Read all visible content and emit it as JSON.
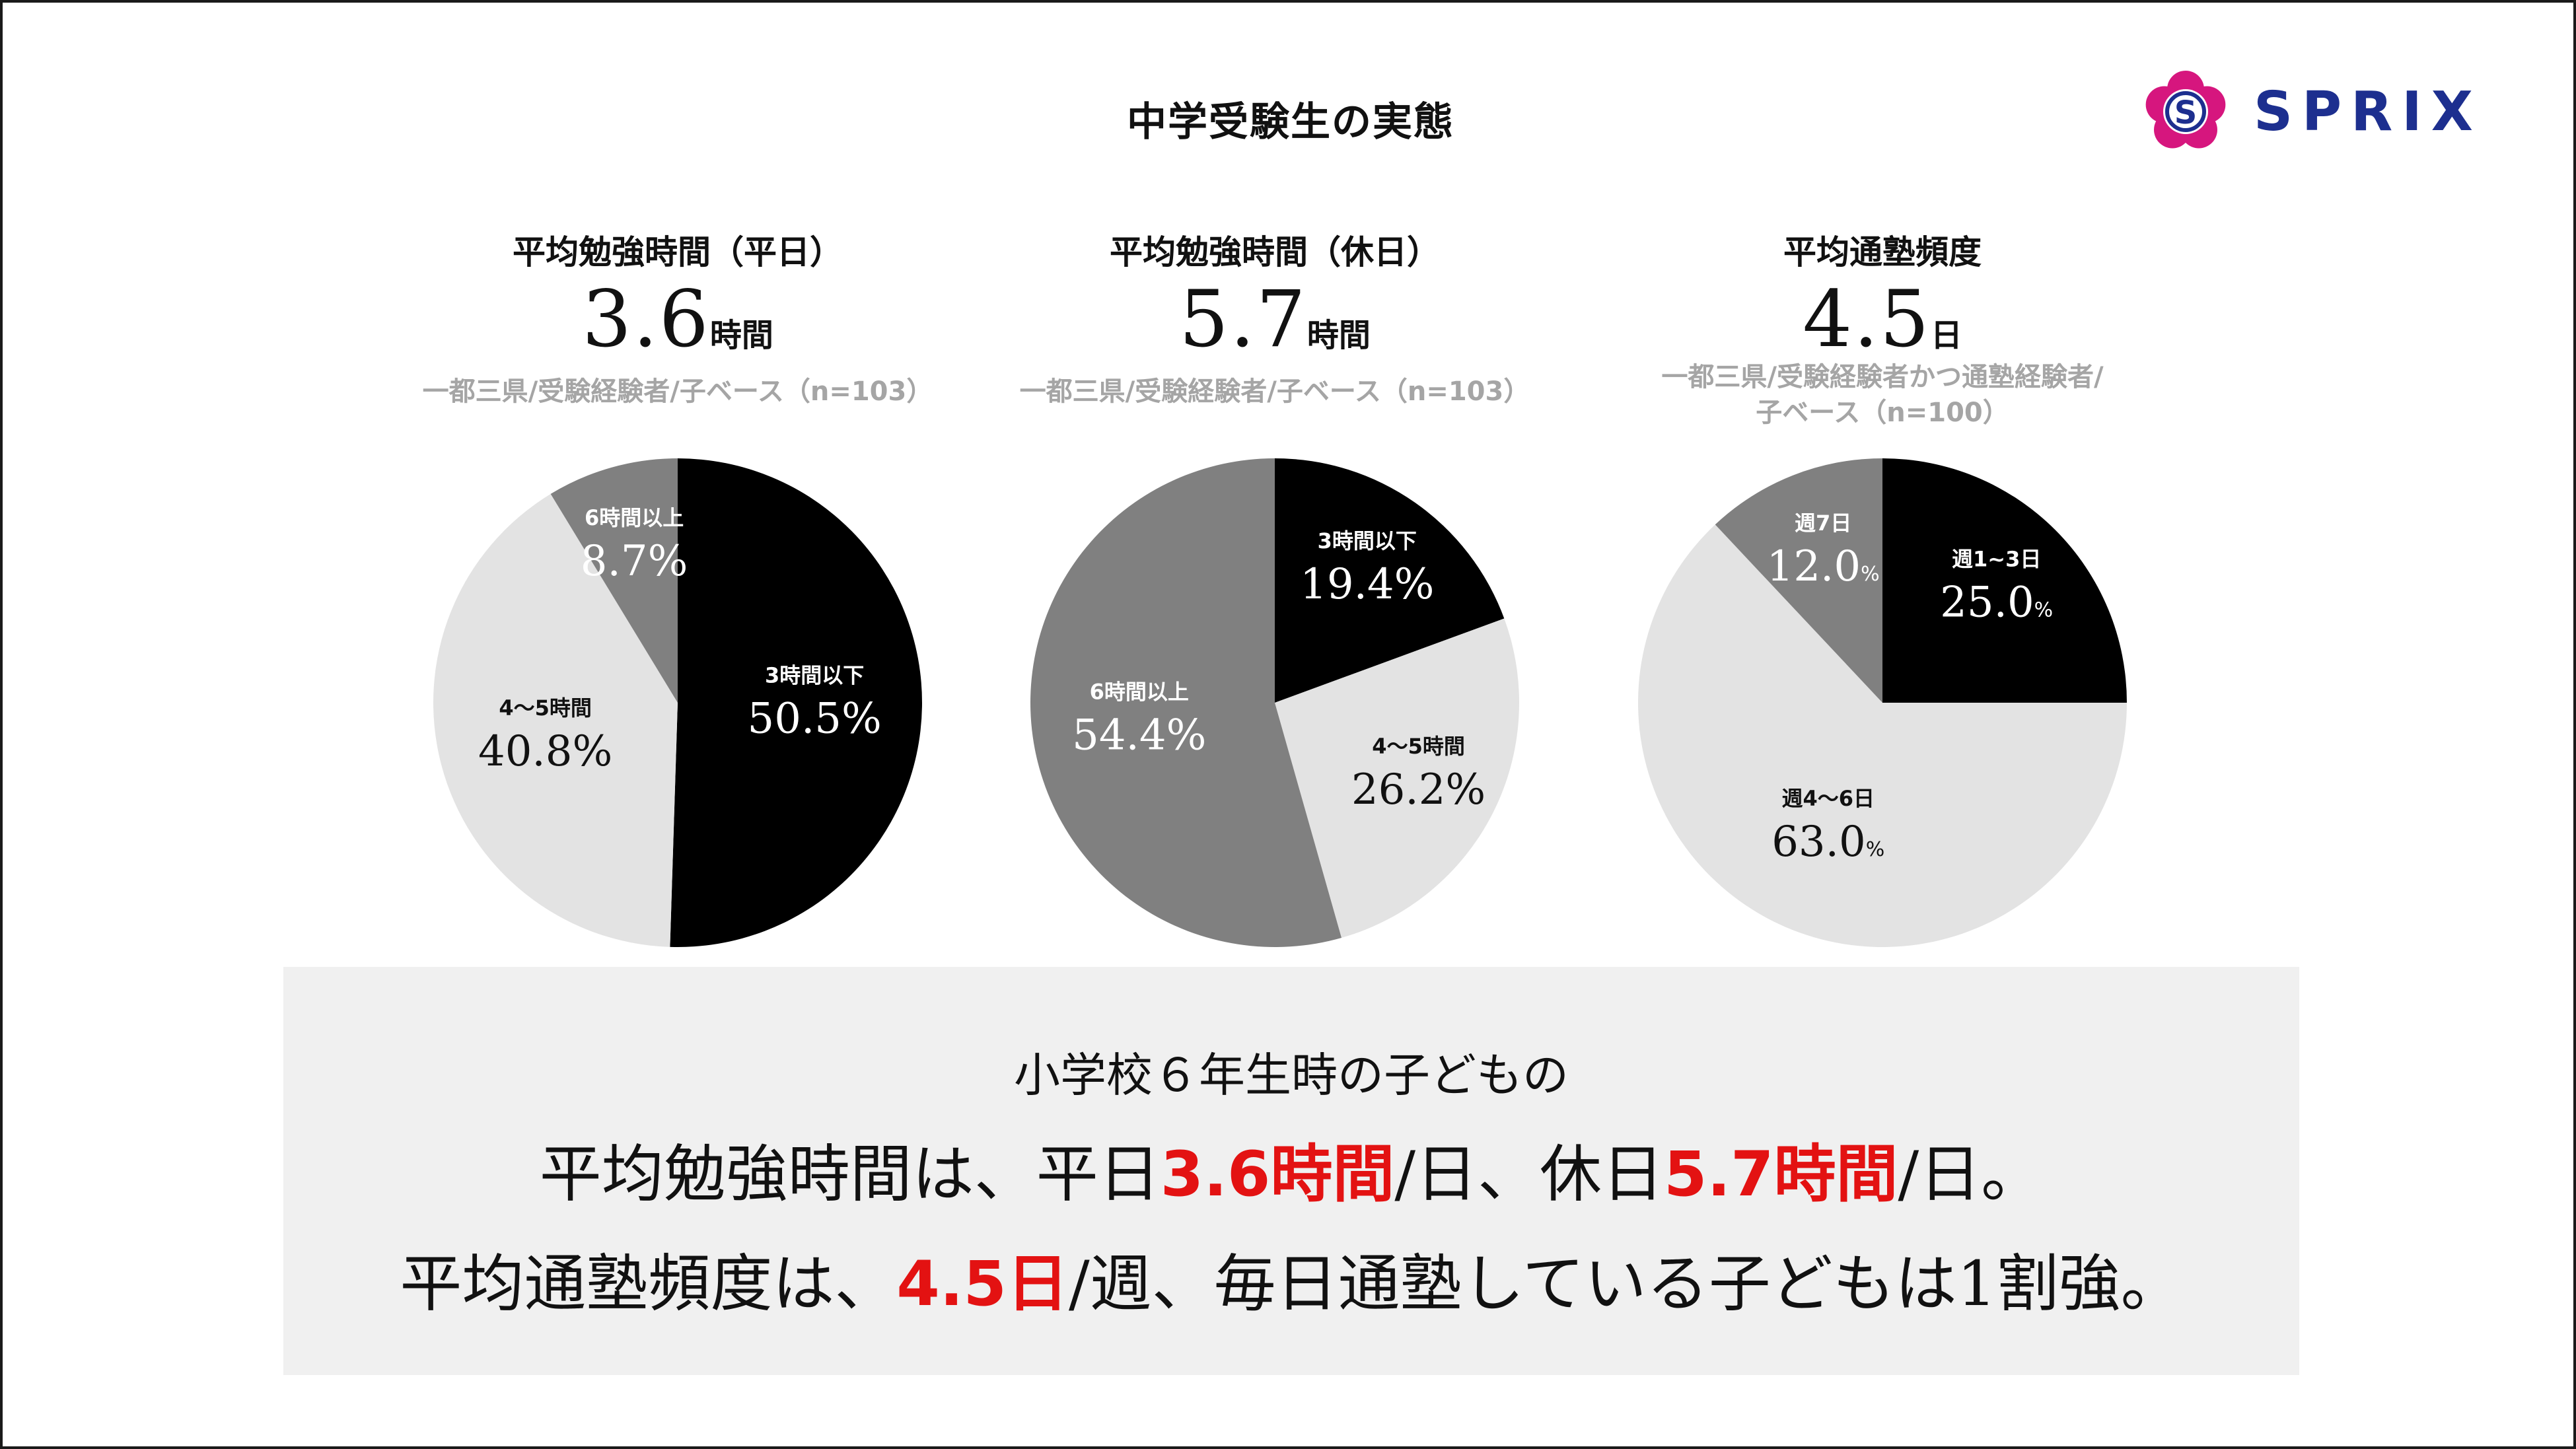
{
  "page_title": "中学受験生の実態",
  "logo": {
    "text": "SPRIX",
    "accent_color": "#d6167e",
    "text_color": "#1d2f8f"
  },
  "chart_data": [
    {
      "type": "pie",
      "title": "平均勉強時間（平日）",
      "headline_value": "3.6",
      "headline_unit": "時間",
      "base_note": [
        "一都三県/受験経験者/子ベース（n=103）"
      ],
      "slices": [
        {
          "label": "3時間以下",
          "value": 50.5,
          "display": "50.5%",
          "color": "#000000",
          "text_color": "#ffffff"
        },
        {
          "label": "4～5時間",
          "value": 40.8,
          "display": "40.8%",
          "color": "#e3e3e3",
          "text_color": "#111111"
        },
        {
          "label": "6時間以上",
          "value": 8.7,
          "display": "8.7%",
          "color": "#808080",
          "text_color": "#ffffff"
        }
      ]
    },
    {
      "type": "pie",
      "title": "平均勉強時間（休日）",
      "headline_value": "5.7",
      "headline_unit": "時間",
      "base_note": [
        "一都三県/受験経験者/子ベース（n=103）"
      ],
      "slices": [
        {
          "label": "3時間以下",
          "value": 19.4,
          "display": "19.4%",
          "color": "#000000",
          "text_color": "#ffffff"
        },
        {
          "label": "4～5時間",
          "value": 26.2,
          "display": "26.2%",
          "color": "#e3e3e3",
          "text_color": "#111111"
        },
        {
          "label": "6時間以上",
          "value": 54.4,
          "display": "54.4%",
          "color": "#808080",
          "text_color": "#ffffff"
        }
      ]
    },
    {
      "type": "pie",
      "title": "平均通塾頻度",
      "headline_value": "4.5",
      "headline_unit": "日",
      "base_note": [
        "一都三県/受験経験者かつ通塾経験者/",
        "子ベース（n=100）"
      ],
      "slices": [
        {
          "label": "週1~3日",
          "value": 25.0,
          "display": "25.0",
          "unit": "%",
          "color": "#000000",
          "text_color": "#ffffff"
        },
        {
          "label": "週4～6日",
          "value": 63.0,
          "display": "63.0",
          "unit": "%",
          "color": "#e3e3e3",
          "text_color": "#111111"
        },
        {
          "label": "週7日",
          "value": 12.0,
          "display": "12.0",
          "unit": "%",
          "color": "#808080",
          "text_color": "#ffffff"
        }
      ]
    }
  ],
  "summary": {
    "line1": "小学校６年生時の子どもの",
    "line2": {
      "a": "平均勉強時間は、平日",
      "b": "3.6時間",
      "c": "/日、休日",
      "d": "5.7時間",
      "e": "/日。"
    },
    "line3": {
      "a": "平均通塾頻度は、",
      "b": "4.5日",
      "c": "/週、毎日通塾している子どもは1割強。"
    },
    "highlight_color": "#e31212"
  }
}
